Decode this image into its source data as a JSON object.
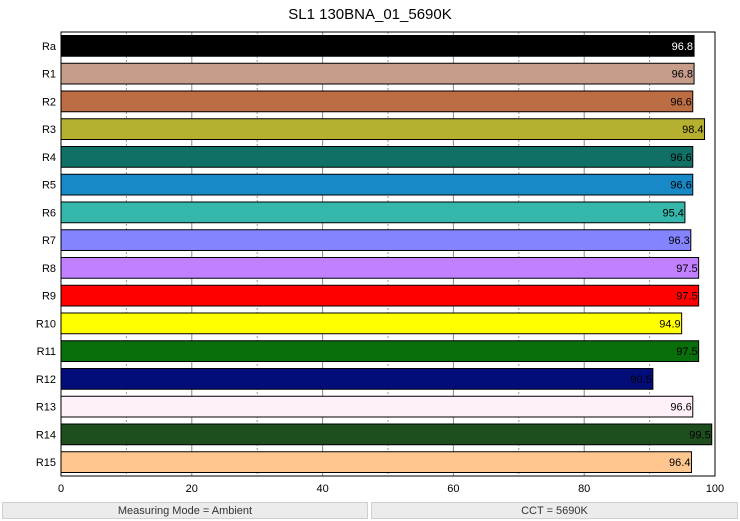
{
  "chart_data": {
    "type": "bar",
    "orientation": "horizontal",
    "title": "SL1 130BNA_01_5690K",
    "xlabel": "",
    "ylabel": "",
    "xlim": [
      0,
      100
    ],
    "x_ticks": [
      0,
      20,
      40,
      60,
      80,
      100
    ],
    "grid": "vertical",
    "categories": [
      "Ra",
      "R1",
      "R2",
      "R3",
      "R4",
      "R5",
      "R6",
      "R7",
      "R8",
      "R9",
      "R10",
      "R11",
      "R12",
      "R13",
      "R14",
      "R15"
    ],
    "values": [
      96.8,
      96.8,
      96.6,
      98.4,
      96.6,
      96.6,
      95.4,
      96.3,
      97.5,
      97.5,
      94.9,
      97.5,
      90.5,
      96.6,
      99.5,
      96.4
    ],
    "colors": [
      "#000000",
      "#c59d8a",
      "#bd6d44",
      "#b5b02f",
      "#117066",
      "#1789c6",
      "#35b8ab",
      "#8484ff",
      "#c080ff",
      "#ff0000",
      "#ffff00",
      "#0a6e0a",
      "#020d7a",
      "#fff0fa",
      "#1e4e1d",
      "#ffc690"
    ],
    "value_label_colors": [
      "#ffffff",
      "#000000",
      "#000000",
      "#000000",
      "#000000",
      "#000000",
      "#000000",
      "#000000",
      "#000000",
      "#000000",
      "#000000",
      "#000000",
      "#000000",
      "#000000",
      "#000000",
      "#000000"
    ]
  },
  "status": {
    "measuring_mode": "Measuring Mode = Ambient",
    "cct": "CCT = 5690K"
  }
}
